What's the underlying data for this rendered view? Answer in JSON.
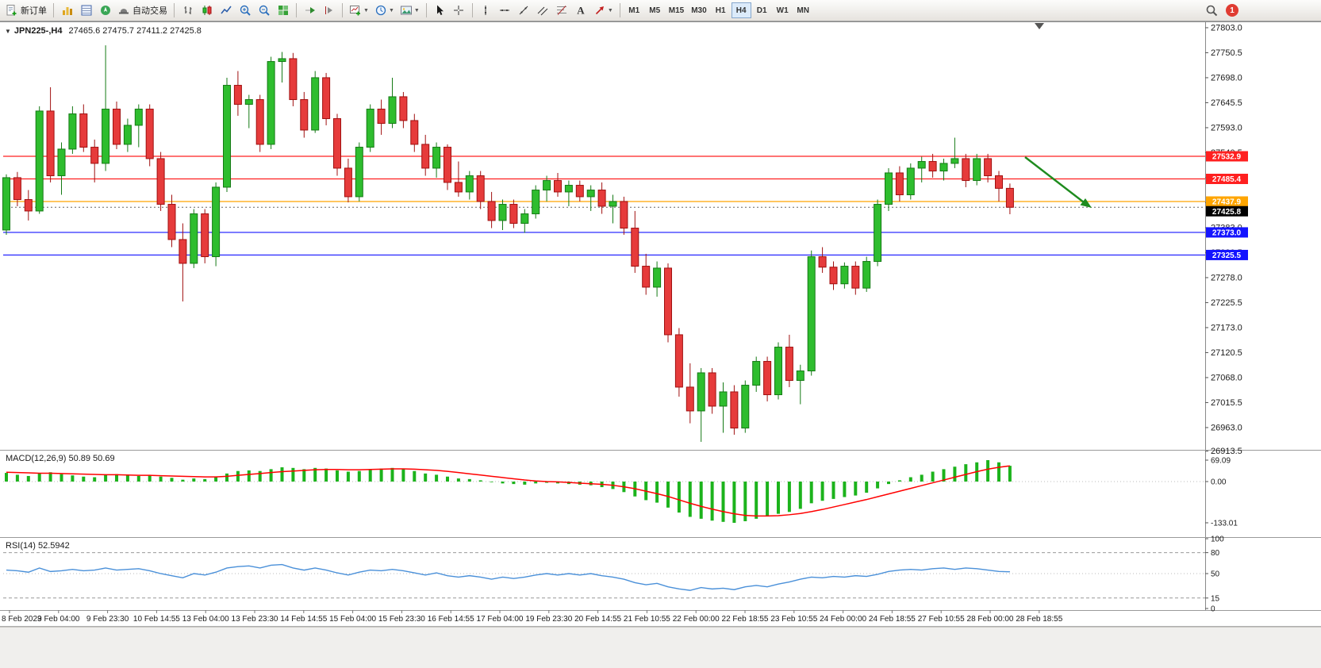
{
  "toolbar": {
    "new_order_label": "新订单",
    "autotrading_label": "自动交易",
    "timeframes": [
      "M1",
      "M5",
      "M15",
      "M30",
      "H1",
      "H4",
      "D1",
      "W1",
      "MN"
    ],
    "active_timeframe": "H4",
    "notification_count": "1"
  },
  "chart_data": {
    "type": "candlestick",
    "symbol": "JPN225-",
    "period": "H4",
    "title": "JPN225-,H4",
    "ohlc_label": "27465.6 27475.7 27411.2 27425.8",
    "current": {
      "open": 27465.6,
      "high": 27475.7,
      "low": 27411.2,
      "close": 27425.8
    },
    "colors": {
      "up": "#2ebd2e",
      "up_border": "#157a15",
      "down": "#e63b3b",
      "down_border": "#a01010",
      "macd_hist": "#1cb31c",
      "macd_signal": "#ff0000",
      "rsi_line": "#4a90d9",
      "current_price_bg": "#000000",
      "arrow": "#1e8b1e"
    },
    "price_axis_ticks": [
      "27803.0",
      "27750.5",
      "27698.0",
      "27645.5",
      "27593.0",
      "27540.5",
      "27488.0",
      "27435.5",
      "27383.0",
      "27330.5",
      "27278.0",
      "27225.5",
      "27173.0",
      "27120.5",
      "27068.0",
      "27015.5",
      "26963.0",
      "26913.5"
    ],
    "levels": [
      {
        "value": 27532.9,
        "label": "27532.9",
        "color": "#ff2020"
      },
      {
        "value": 27485.4,
        "label": "27485.4",
        "color": "#ff2020"
      },
      {
        "value": 27437.9,
        "label": "27437.9",
        "color": "#ffa500"
      },
      {
        "value": 27373.0,
        "label": "27373.0",
        "color": "#1414ff"
      },
      {
        "value": 27325.5,
        "label": "27325.5",
        "color": "#1414ff"
      }
    ],
    "current_price_label": "27425.8",
    "time_labels": [
      "8 Feb 2023",
      "9 Feb 04:00",
      "9 Feb 23:30",
      "10 Feb 14:55",
      "13 Feb 04:00",
      "13 Feb 23:30",
      "14 Feb 14:55",
      "15 Feb 04:00",
      "15 Feb 23:30",
      "16 Feb 14:55",
      "17 Feb 04:00",
      "19 Feb 23:30",
      "20 Feb 14:55",
      "21 Feb 10:55",
      "22 Feb 00:00",
      "22 Feb 18:55",
      "23 Feb 10:55",
      "24 Feb 00:00",
      "24 Feb 18:55",
      "27 Feb 10:55",
      "28 Feb 00:00",
      "28 Feb 18:55"
    ],
    "candles": [
      [
        27378,
        27495,
        27368,
        27488
      ],
      [
        27488,
        27500,
        27428,
        27442
      ],
      [
        27442,
        27462,
        27398,
        27418
      ],
      [
        27418,
        27638,
        27412,
        27628
      ],
      [
        27628,
        27678,
        27478,
        27492
      ],
      [
        27492,
        27562,
        27452,
        27548
      ],
      [
        27548,
        27638,
        27538,
        27622
      ],
      [
        27622,
        27642,
        27542,
        27552
      ],
      [
        27552,
        27568,
        27478,
        27518
      ],
      [
        27518,
        27766,
        27502,
        27632
      ],
      [
        27632,
        27648,
        27548,
        27558
      ],
      [
        27558,
        27612,
        27542,
        27598
      ],
      [
        27598,
        27642,
        27552,
        27632
      ],
      [
        27632,
        27642,
        27512,
        27528
      ],
      [
        27528,
        27542,
        27418,
        27432
      ],
      [
        27432,
        27452,
        27342,
        27358
      ],
      [
        27358,
        27392,
        27228,
        27308
      ],
      [
        27308,
        27422,
        27298,
        27412
      ],
      [
        27412,
        27422,
        27308,
        27322
      ],
      [
        27322,
        27478,
        27302,
        27468
      ],
      [
        27468,
        27698,
        27458,
        27682
      ],
      [
        27682,
        27712,
        27618,
        27642
      ],
      [
        27642,
        27662,
        27592,
        27652
      ],
      [
        27652,
        27662,
        27542,
        27558
      ],
      [
        27558,
        27742,
        27548,
        27732
      ],
      [
        27732,
        27752,
        27688,
        27738
      ],
      [
        27738,
        27750,
        27638,
        27652
      ],
      [
        27652,
        27668,
        27572,
        27588
      ],
      [
        27588,
        27712,
        27582,
        27698
      ],
      [
        27698,
        27708,
        27598,
        27612
      ],
      [
        27612,
        27622,
        27492,
        27508
      ],
      [
        27508,
        27528,
        27436,
        27448
      ],
      [
        27448,
        27562,
        27438,
        27552
      ],
      [
        27552,
        27642,
        27542,
        27632
      ],
      [
        27632,
        27652,
        27578,
        27602
      ],
      [
        27602,
        27698,
        27592,
        27658
      ],
      [
        27658,
        27668,
        27592,
        27608
      ],
      [
        27608,
        27622,
        27542,
        27558
      ],
      [
        27558,
        27578,
        27492,
        27508
      ],
      [
        27508,
        27562,
        27488,
        27552
      ],
      [
        27552,
        27558,
        27462,
        27478
      ],
      [
        27478,
        27522,
        27448,
        27458
      ],
      [
        27458,
        27502,
        27442,
        27492
      ],
      [
        27492,
        27502,
        27422,
        27438
      ],
      [
        27438,
        27458,
        27382,
        27398
      ],
      [
        27398,
        27442,
        27378,
        27432
      ],
      [
        27432,
        27442,
        27382,
        27392
      ],
      [
        27392,
        27422,
        27372,
        27412
      ],
      [
        27412,
        27472,
        27402,
        27462
      ],
      [
        27462,
        27492,
        27438,
        27482
      ],
      [
        27482,
        27498,
        27448,
        27458
      ],
      [
        27458,
        27482,
        27428,
        27472
      ],
      [
        27472,
        27482,
        27438,
        27448
      ],
      [
        27448,
        27472,
        27418,
        27462
      ],
      [
        27462,
        27478,
        27412,
        27428
      ],
      [
        27428,
        27452,
        27392,
        27438
      ],
      [
        27438,
        27448,
        27368,
        27382
      ],
      [
        27382,
        27418,
        27288,
        27302
      ],
      [
        27302,
        27328,
        27242,
        27258
      ],
      [
        27258,
        27312,
        27238,
        27298
      ],
      [
        27298,
        27308,
        27142,
        27158
      ],
      [
        27158,
        27172,
        27028,
        27048
      ],
      [
        27048,
        27098,
        26972,
        26998
      ],
      [
        26998,
        27088,
        26933,
        27078
      ],
      [
        27078,
        27088,
        26992,
        27008
      ],
      [
        27008,
        27058,
        26952,
        27038
      ],
      [
        27038,
        27052,
        26948,
        26962
      ],
      [
        26962,
        27062,
        26952,
        27052
      ],
      [
        27052,
        27112,
        27038,
        27102
      ],
      [
        27102,
        27112,
        27018,
        27032
      ],
      [
        27032,
        27142,
        27022,
        27132
      ],
      [
        27132,
        27158,
        27048,
        27062
      ],
      [
        27062,
        27095,
        27012,
        27082
      ],
      [
        27082,
        27335,
        27072,
        27322
      ],
      [
        27322,
        27342,
        27288,
        27300
      ],
      [
        27300,
        27312,
        27252,
        27265
      ],
      [
        27265,
        27310,
        27255,
        27302
      ],
      [
        27302,
        27312,
        27242,
        27256
      ],
      [
        27256,
        27322,
        27248,
        27312
      ],
      [
        27312,
        27442,
        27302,
        27432
      ],
      [
        27432,
        27508,
        27418,
        27498
      ],
      [
        27498,
        27512,
        27438,
        27452
      ],
      [
        27452,
        27518,
        27442,
        27508
      ],
      [
        27508,
        27532,
        27478,
        27522
      ],
      [
        27522,
        27538,
        27488,
        27502
      ],
      [
        27502,
        27528,
        27482,
        27518
      ],
      [
        27518,
        27572,
        27508,
        27528
      ],
      [
        27528,
        27538,
        27468,
        27482
      ],
      [
        27482,
        27538,
        27472,
        27528
      ],
      [
        27528,
        27538,
        27478,
        27492
      ],
      [
        27492,
        27502,
        27438,
        27465.6
      ],
      [
        27465.6,
        27475.7,
        27411.2,
        27425.8
      ]
    ],
    "indicators": {
      "macd": {
        "label": "MACD(12,26,9) 50.89 50.69",
        "axis_ticks": [
          "69.09",
          "0.00",
          "-133.01"
        ],
        "axis_values": [
          69.09,
          0,
          -133.01
        ],
        "histogram": [
          28,
          22,
          18,
          26,
          30,
          24,
          20,
          16,
          14,
          22,
          24,
          20,
          18,
          20,
          16,
          12,
          6,
          10,
          8,
          14,
          26,
          34,
          36,
          34,
          40,
          46,
          44,
          40,
          44,
          42,
          36,
          32,
          34,
          40,
          42,
          44,
          40,
          34,
          26,
          22,
          16,
          10,
          8,
          4,
          -2,
          -6,
          -8,
          -10,
          -6,
          -4,
          -6,
          -8,
          -10,
          -12,
          -18,
          -24,
          -34,
          -48,
          -60,
          -68,
          -84,
          -100,
          -114,
          -120,
          -126,
          -130,
          -133.01,
          -128,
          -120,
          -112,
          -104,
          -98,
          -88,
          -70,
          -62,
          -56,
          -50,
          -45,
          -36,
          -22,
          -8,
          4,
          14,
          22,
          32,
          40,
          48,
          56,
          62,
          69.09,
          62,
          50.89
        ],
        "signal": [
          30,
          29,
          28,
          27,
          27,
          26,
          25,
          24,
          23,
          22,
          22,
          21,
          20,
          20,
          19,
          18,
          17,
          16,
          15,
          15,
          17,
          20,
          23,
          26,
          29,
          32,
          34,
          36,
          38,
          39,
          39,
          38,
          38,
          39,
          40,
          41,
          41,
          40,
          38,
          36,
          33,
          29,
          25,
          21,
          17,
          13,
          9,
          5,
          2,
          0,
          -1,
          -3,
          -5,
          -7,
          -9,
          -12,
          -17,
          -23,
          -31,
          -39,
          -48,
          -59,
          -70,
          -80,
          -89,
          -97,
          -104,
          -109,
          -111,
          -111,
          -110,
          -107,
          -103,
          -97,
          -90,
          -82,
          -74,
          -66,
          -58,
          -49,
          -40,
          -31,
          -22,
          -13,
          -4,
          5,
          14,
          23,
          32,
          40,
          46,
          50.69
        ]
      },
      "rsi": {
        "label": "RSI(14) 52.5942",
        "axis_ticks": [
          "100",
          "80",
          "50",
          "15",
          "0"
        ],
        "axis_values": [
          100,
          80,
          50,
          15,
          0
        ],
        "level_lines": [
          80,
          15
        ],
        "mid_line": 50,
        "values": [
          55,
          54,
          52,
          58,
          53,
          54,
          56,
          54,
          55,
          58,
          55,
          56,
          57,
          54,
          50,
          47,
          44,
          50,
          48,
          52,
          58,
          60,
          61,
          58,
          62,
          63,
          58,
          55,
          58,
          55,
          51,
          48,
          52,
          55,
          54,
          56,
          54,
          51,
          48,
          51,
          47,
          45,
          47,
          45,
          42,
          45,
          43,
          45,
          48,
          50,
          48,
          50,
          48,
          50,
          47,
          45,
          42,
          37,
          34,
          36,
          31,
          28,
          26,
          30,
          28,
          29,
          27,
          31,
          33,
          31,
          35,
          38,
          42,
          45,
          44,
          46,
          45,
          47,
          46,
          49,
          53,
          55,
          56,
          55,
          57,
          58,
          56,
          58,
          57,
          55,
          53,
          52.59
        ]
      }
    },
    "annotations": {
      "arrow": {
        "color": "#1e8b1e"
      }
    }
  }
}
